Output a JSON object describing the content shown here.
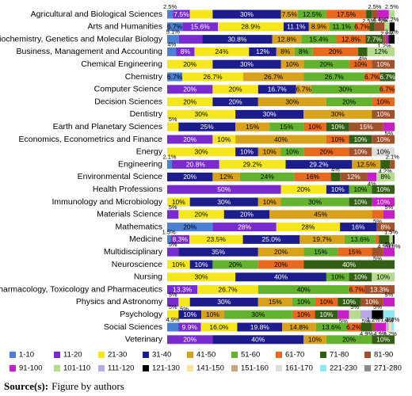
{
  "chart_data": {
    "type": "bar",
    "orientation": "horizontal",
    "stacked": true,
    "source_label": "Source(s):",
    "source": "Figure by authors",
    "xlim": [
      0,
      100
    ],
    "categories": [
      "Agricultural and Biological Sciences",
      "Arts and Humanities",
      "Biochemistry, Genetics and Molecular Biology",
      "Business, Management and Accounting",
      "Chemical Engineering",
      "Chemistry",
      "Computer Science",
      "Decision Sciences",
      "Dentistry",
      "Earth and Planetary Sciences",
      "Economics, Econometrics and Finance",
      "Energy",
      "Engineering",
      "Environmental Science",
      "Health Professions",
      "Immunology and Microbiology",
      "Materials Science",
      "Mathematics",
      "Medicine",
      "Multidisciplinary",
      "Neuroscience",
      "Nursing",
      "Pharmacology, Toxicology and Pharmaceutics",
      "Physics and Astronomy",
      "Psychology",
      "Social Sciences",
      "Veterinary"
    ],
    "series": [
      {
        "name": "1-10",
        "color": "#4a7fd4",
        "values": [
          2.5,
          6.7,
          5.1,
          4,
          null,
          6.7,
          null,
          null,
          null,
          null,
          null,
          null,
          2.1,
          null,
          null,
          null,
          null,
          20,
          1.5,
          null,
          null,
          null,
          null,
          null,
          null,
          4.9,
          null
        ],
        "value_labels": [
          "2.5%",
          "6.7%",
          "5.1%",
          "4%",
          null,
          "6.7%",
          null,
          null,
          null,
          null,
          null,
          null,
          "2.1%",
          null,
          null,
          null,
          null,
          "20%",
          "1.5%",
          null,
          null,
          null,
          null,
          null,
          null,
          "4.9%",
          null
        ]
      },
      {
        "name": "11-20",
        "color": "#7a2bd0",
        "values": [
          7.5,
          15.6,
          10.3,
          8,
          null,
          null,
          20,
          null,
          null,
          null,
          20,
          null,
          20.8,
          null,
          50,
          null,
          5,
          28,
          8.3,
          5,
          null,
          null,
          13.3,
          5,
          null,
          9.9,
          20
        ],
        "value_labels": [
          "7.5%",
          "15.6%",
          null,
          "8%",
          null,
          null,
          "20%",
          null,
          null,
          null,
          "20%",
          null,
          "20.8%",
          null,
          "50%",
          null,
          "5%",
          "28%",
          "8.3%",
          "5%",
          null,
          null,
          "13.3%",
          "5%",
          null,
          "9.9%",
          "20%"
        ]
      },
      {
        "name": "21-30",
        "color": "#f5e71c",
        "values": [
          10,
          28.9,
          null,
          24,
          20,
          26.7,
          20,
          20,
          30,
          5,
          10,
          30,
          29.2,
          null,
          20,
          10,
          20,
          28,
          23.5,
          null,
          10,
          30,
          26.7,
          5,
          5,
          16.0,
          null
        ],
        "value_labels": [
          null,
          "28.9%",
          null,
          "24%",
          "20%",
          "26.7%",
          "20%",
          "20%",
          "30%",
          "5%",
          "10%",
          "30%",
          "29.2%",
          null,
          "20%",
          "10%",
          "20%",
          "28%",
          "23.5%",
          null,
          "10%",
          "30%",
          "26.7%",
          "5%",
          "5%",
          "16.0%",
          null
        ]
      },
      {
        "name": "31-40",
        "color": "#1c1c8c",
        "values": [
          30,
          11.1,
          30.8,
          12,
          30,
          null,
          16.7,
          20,
          30,
          25,
          null,
          10,
          29.2,
          20,
          10,
          30,
          20,
          16,
          25.0,
          35,
          10,
          40,
          null,
          30,
          10,
          19.8,
          40
        ],
        "value_labels": [
          "30%",
          "11.1%",
          "30.8%",
          "12%",
          "30%",
          null,
          "16.7%",
          "20%",
          "30%",
          "25%",
          null,
          "10%",
          "29.2%",
          "20%",
          "10%",
          "30%",
          "20%",
          "16%",
          "25.0%",
          "35%",
          "10%",
          "40%",
          null,
          "30%",
          "10%",
          "19.8%",
          "40%"
        ]
      },
      {
        "name": "41-50",
        "color": "#d9a21b",
        "values": [
          7.5,
          8.9,
          12.8,
          8,
          10,
          26.7,
          6.7,
          30,
          30,
          15,
          40,
          10,
          12.5,
          12,
          null,
          10,
          45,
          null,
          19.7,
          20,
          null,
          null,
          null,
          15,
          10,
          14.8,
          10
        ],
        "value_labels": [
          "7.5%",
          "8.9%",
          "12.8%",
          "8%",
          "10%",
          "26.7%",
          "6.7%",
          "30%",
          "30%",
          "15%",
          "40%",
          "10%",
          "12.5%",
          "12%",
          null,
          "10%",
          "45%",
          null,
          "19.7%",
          "20%",
          null,
          null,
          null,
          "15%",
          "10%",
          "14.8%",
          "10%"
        ]
      },
      {
        "name": "51-60",
        "color": "#64b32f",
        "values": [
          12.5,
          11.1,
          15.4,
          8,
          20,
          26.7,
          30,
          20,
          null,
          15,
          null,
          10,
          null,
          24,
          10,
          30,
          null,
          null,
          13.6,
          15,
          20,
          10,
          40,
          10,
          30,
          13.6,
          20
        ],
        "value_labels": [
          "12.5%",
          "11.1%",
          "15.4%",
          "8%",
          "20%",
          "26.7%",
          "30%",
          "20%",
          null,
          "15%",
          null,
          "10%",
          null,
          "24%",
          "10%",
          "30%",
          null,
          null,
          "13.6%",
          "15%",
          "20%",
          "10%",
          "40%",
          "10%",
          "30%",
          "13.6%",
          "20%"
        ]
      },
      {
        "name": "61-70",
        "color": "#e86a1e",
        "values": [
          17.5,
          6.7,
          12.8,
          20,
          10,
          6.7,
          6.7,
          10,
          null,
          10,
          10,
          20,
          null,
          16,
          null,
          null,
          5,
          null,
          1.6,
          15,
          20,
          null,
          6.7,
          10,
          10,
          6.2,
          null
        ],
        "value_labels": [
          "17.5%",
          "6.7%",
          "12.8%",
          "20%",
          "10%",
          "6.7%",
          "6.7%",
          "10%",
          null,
          "10%",
          "10%",
          "20%",
          null,
          "16%",
          null,
          null,
          "5%",
          null,
          null,
          "15%",
          "20%",
          null,
          "6.7%",
          "10%",
          "10%",
          "6.2%",
          null
        ]
      },
      {
        "name": "71-80",
        "color": "#335f14",
        "values": [
          2.5,
          2.2,
          7.7,
          4,
          null,
          6.7,
          null,
          null,
          null,
          10,
          10,
          null,
          4.2,
          4,
          10,
          10,
          null,
          null,
          4.5,
          null,
          40,
          10,
          null,
          10,
          10,
          4.9,
          10
        ],
        "value_labels": [
          "2.5%",
          null,
          "7.7%",
          "4%",
          null,
          "6.7%",
          null,
          null,
          null,
          "10%",
          "10%",
          null,
          "4.2%",
          "4%",
          "10%",
          "10%",
          null,
          null,
          "4.5%",
          null,
          "40%",
          "10%",
          null,
          "10%",
          "10%",
          "4.9%",
          "10%"
        ]
      },
      {
        "name": "81-90",
        "color": "#a0522d",
        "values": [
          2.5,
          4.4,
          1.2,
          null,
          10,
          null,
          null,
          null,
          10,
          15,
          10,
          10,
          2.1,
          12,
          null,
          null,
          null,
          8,
          null,
          5,
          null,
          null,
          13.3,
          10,
          null,
          1.2,
          null
        ],
        "value_labels": [
          "2.5%",
          "4.4%",
          "1.2%",
          null,
          "10%",
          null,
          null,
          null,
          "10%",
          "15%",
          "10%",
          "10%",
          "2.1%",
          "12%",
          null,
          null,
          null,
          "8%",
          null,
          "5%",
          null,
          null,
          "13.3%",
          "10%",
          null,
          "1.2%",
          null
        ]
      },
      {
        "name": "91-100",
        "color": "#c71fc7",
        "values": [
          5,
          null,
          1.3,
          null,
          null,
          null,
          null,
          null,
          null,
          5,
          null,
          null,
          null,
          4,
          null,
          10,
          5,
          null,
          null,
          5,
          null,
          null,
          null,
          5,
          5,
          4.9,
          null
        ],
        "value_labels": [
          "5%",
          null,
          null,
          null,
          null,
          null,
          null,
          null,
          null,
          "5%",
          null,
          null,
          null,
          "4%",
          null,
          "10%",
          "5%",
          null,
          null,
          "5%",
          null,
          null,
          null,
          "5%",
          "5%",
          "4.9%",
          null
        ]
      },
      {
        "name": "101-110",
        "color": "#b5dc8c",
        "values": [
          2.5,
          2.2,
          null,
          12,
          null,
          null,
          null,
          null,
          null,
          null,
          null,
          null,
          null,
          8,
          null,
          null,
          null,
          null,
          1.5,
          null,
          null,
          10,
          null,
          null,
          5,
          null,
          null
        ],
        "value_labels": [
          "2.5%",
          "2.2%",
          null,
          "12%",
          null,
          null,
          null,
          null,
          null,
          null,
          null,
          null,
          null,
          "8%",
          null,
          null,
          null,
          null,
          "1.5%",
          null,
          null,
          "10%",
          null,
          null,
          "5%",
          null,
          null
        ]
      },
      {
        "name": "111-120",
        "color": "#b8a8e8",
        "values": [
          null,
          null,
          null,
          null,
          null,
          null,
          null,
          null,
          null,
          null,
          null,
          null,
          null,
          null,
          null,
          null,
          null,
          null,
          null,
          null,
          null,
          null,
          null,
          null,
          5,
          1.2,
          null
        ],
        "value_labels": [
          null,
          null,
          null,
          null,
          null,
          null,
          null,
          null,
          null,
          null,
          null,
          null,
          null,
          null,
          null,
          null,
          null,
          null,
          null,
          null,
          null,
          null,
          null,
          null,
          "5%",
          "1.2%",
          null
        ]
      },
      {
        "name": "121-130",
        "color": "#000000",
        "values": [
          null,
          2.2,
          2.6,
          null,
          null,
          null,
          null,
          null,
          null,
          null,
          null,
          null,
          null,
          null,
          null,
          null,
          null,
          null,
          0.8,
          null,
          null,
          null,
          null,
          null,
          5,
          null,
          null
        ],
        "value_labels": [
          null,
          "2.2%",
          "2.6%",
          null,
          null,
          null,
          null,
          null,
          null,
          null,
          null,
          null,
          null,
          null,
          null,
          null,
          null,
          null,
          "0.8%",
          null,
          null,
          null,
          null,
          null,
          "5%",
          null,
          null
        ]
      },
      {
        "name": "141-150",
        "color": "#f5e39a",
        "values": [
          null,
          null,
          null,
          null,
          null,
          null,
          null,
          null,
          null,
          null,
          null,
          null,
          null,
          null,
          null,
          null,
          null,
          null,
          null,
          null,
          null,
          null,
          null,
          null,
          null,
          1.2,
          null
        ],
        "value_labels": [
          null,
          null,
          null,
          null,
          null,
          null,
          null,
          null,
          null,
          null,
          null,
          null,
          null,
          null,
          null,
          null,
          null,
          null,
          null,
          null,
          null,
          null,
          null,
          null,
          null,
          "1.2%",
          null
        ]
      },
      {
        "name": "151-160",
        "color": "#c9a67c",
        "values": [
          null,
          null,
          null,
          null,
          null,
          null,
          null,
          null,
          null,
          null,
          null,
          null,
          null,
          null,
          null,
          null,
          null,
          null,
          null,
          null,
          null,
          null,
          null,
          null,
          null,
          null,
          null
        ],
        "value_labels": [
          null,
          null,
          null,
          null,
          null,
          null,
          null,
          null,
          null,
          null,
          null,
          null,
          null,
          null,
          null,
          null,
          null,
          null,
          null,
          null,
          null,
          null,
          null,
          null,
          null,
          null,
          null
        ]
      },
      {
        "name": "161-170",
        "color": "#dcdcdc",
        "values": [
          null,
          null,
          null,
          null,
          null,
          null,
          null,
          null,
          null,
          null,
          null,
          10,
          null,
          null,
          null,
          null,
          null,
          null,
          null,
          null,
          null,
          null,
          null,
          null,
          null,
          null,
          null
        ],
        "value_labels": [
          null,
          null,
          null,
          null,
          null,
          null,
          null,
          null,
          null,
          null,
          null,
          "10%",
          null,
          null,
          null,
          null,
          null,
          null,
          null,
          null,
          null,
          null,
          null,
          null,
          null,
          null,
          null
        ]
      },
      {
        "name": "221-230",
        "color": "#8ee8f0",
        "values": [
          null,
          null,
          null,
          null,
          null,
          null,
          null,
          null,
          null,
          null,
          null,
          null,
          null,
          null,
          null,
          null,
          null,
          null,
          null,
          null,
          null,
          null,
          null,
          null,
          5,
          1.2,
          null
        ],
        "value_labels": [
          null,
          null,
          null,
          null,
          null,
          null,
          null,
          null,
          null,
          null,
          null,
          null,
          null,
          null,
          null,
          null,
          null,
          null,
          null,
          null,
          null,
          null,
          null,
          null,
          "5%",
          "1.2%",
          null
        ]
      },
      {
        "name": "271-280",
        "color": "#8c8c8c",
        "values": [
          null,
          null,
          null,
          null,
          null,
          null,
          null,
          null,
          null,
          null,
          null,
          null,
          null,
          null,
          null,
          null,
          null,
          null,
          null,
          null,
          null,
          null,
          null,
          null,
          null,
          null,
          null
        ],
        "value_labels": [
          null,
          null,
          null,
          null,
          null,
          null,
          null,
          null,
          null,
          null,
          null,
          null,
          null,
          null,
          null,
          null,
          null,
          null,
          null,
          null,
          null,
          null,
          null,
          null,
          null,
          null,
          null
        ]
      }
    ]
  }
}
